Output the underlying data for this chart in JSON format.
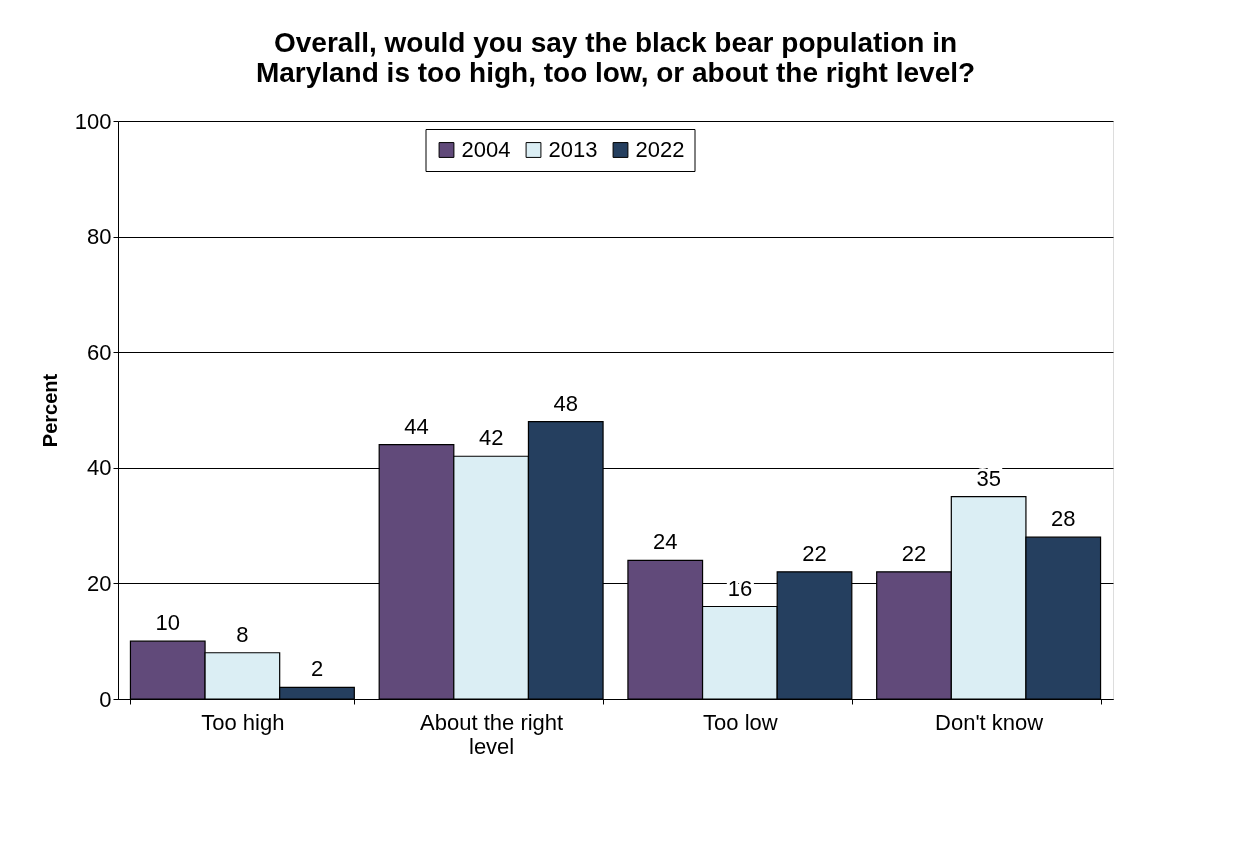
{
  "chart_data": {
    "type": "bar",
    "title": "Overall, would you say the black bear population in Maryland is too high, too low, or about the right level?",
    "ylabel": "Percent",
    "categories": [
      "Too high",
      "About the right level",
      "Too low",
      "Don't know"
    ],
    "series": [
      {
        "name": "2004",
        "color": "#614a7a",
        "values": [
          10,
          44,
          24,
          22
        ]
      },
      {
        "name": "2013",
        "color": "#dbeef4",
        "values": [
          8,
          42,
          16,
          35
        ]
      },
      {
        "name": "2022",
        "color": "#253f5f",
        "values": [
          2,
          48,
          22,
          28
        ]
      }
    ],
    "ylim": [
      0,
      100
    ],
    "yticks": [
      0,
      20,
      40,
      60,
      80,
      100
    ],
    "grid": "y",
    "legend": "top",
    "data_labels": true
  }
}
